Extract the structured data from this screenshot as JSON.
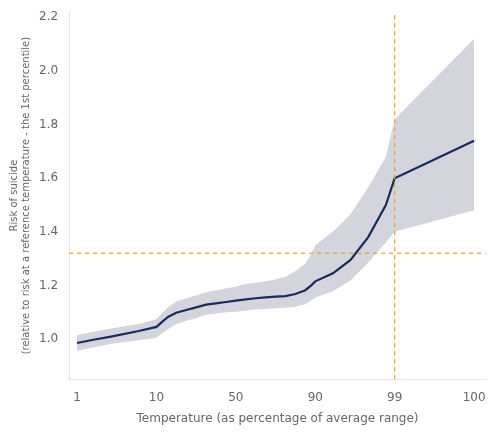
{
  "chart_data": {
    "type": "line",
    "xlabel": "Temperature (as percentage of average range)",
    "ylabel": "Risk of suicide\n(relative to risk at a reference temperature - the 1st percentile)",
    "x": [
      1,
      3,
      5,
      8,
      10,
      13,
      16,
      20,
      25,
      30,
      35,
      40,
      45,
      50,
      55,
      60,
      65,
      70,
      75,
      80,
      85,
      88,
      90,
      92,
      94,
      96,
      98,
      99,
      100
    ],
    "values": [
      0.985,
      0.998,
      1.01,
      1.03,
      1.045,
      1.065,
      1.083,
      1.098,
      1.108,
      1.118,
      1.128,
      1.133,
      1.138,
      1.143,
      1.148,
      1.152,
      1.155,
      1.158,
      1.16,
      1.168,
      1.182,
      1.2,
      1.215,
      1.245,
      1.295,
      1.38,
      1.5,
      1.6,
      1.74
    ],
    "lower": [
      0.955,
      0.97,
      0.982,
      0.995,
      1.005,
      1.022,
      1.038,
      1.055,
      1.068,
      1.078,
      1.09,
      1.095,
      1.1,
      1.102,
      1.106,
      1.11,
      1.112,
      1.115,
      1.117,
      1.12,
      1.13,
      1.145,
      1.155,
      1.178,
      1.218,
      1.285,
      1.36,
      1.4,
      1.48
    ],
    "upper": [
      1.015,
      1.028,
      1.04,
      1.056,
      1.075,
      1.098,
      1.118,
      1.14,
      1.152,
      1.162,
      1.174,
      1.182,
      1.188,
      1.196,
      1.205,
      1.21,
      1.215,
      1.222,
      1.232,
      1.254,
      1.282,
      1.318,
      1.35,
      1.4,
      1.465,
      1.565,
      1.68,
      1.82,
      2.12
    ],
    "color": "#1a2a5a",
    "band_color": "#b8b8c4",
    "hline": {
      "value": 1.32,
      "color": "#E8A020",
      "line_style": "dashed"
    },
    "vline": {
      "value": 99,
      "color": "#E8A020",
      "line_style": "dashed"
    },
    "xlim": [
      0.1,
      100.15
    ],
    "xticks": [
      1,
      10,
      50,
      90,
      99,
      100
    ],
    "ylim": [
      0.85,
      2.22
    ],
    "yticks": [
      {
        "value": 1.0,
        "label": "1.0"
      },
      1.2,
      1.4,
      1.6,
      1.8,
      {
        "value": 2.0,
        "label": "2.0"
      },
      2.2
    ],
    "grid": false
  }
}
